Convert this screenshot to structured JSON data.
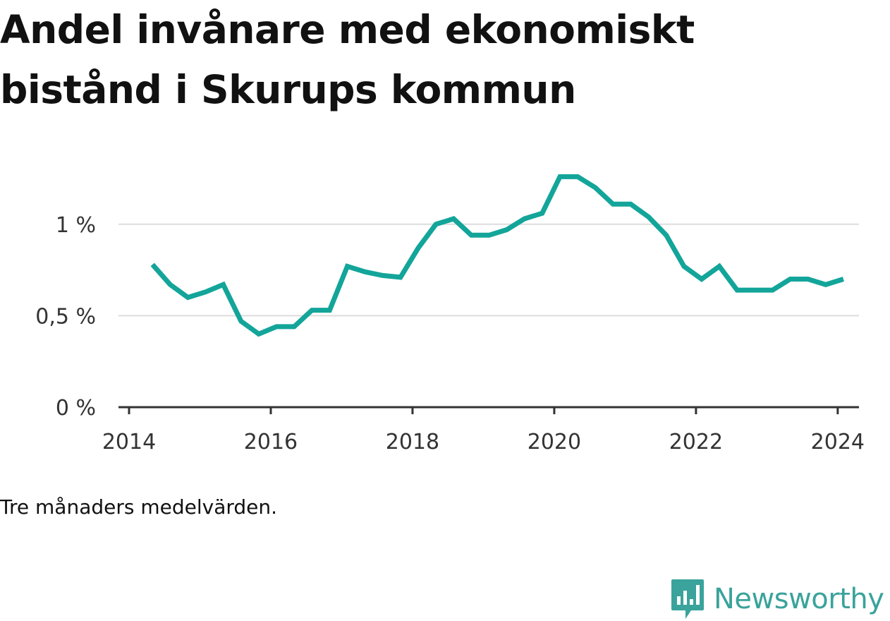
{
  "title": "Andel invånare med ekonomiskt bistånd i Skurups kommun",
  "caption": "Tre månaders medelvärden.",
  "brand": {
    "name": "Newsworthy",
    "color": "#3aa39b"
  },
  "chart_data": {
    "type": "line",
    "title": "Andel invånare med ekonomiskt bistånd i Skurups kommun",
    "xlabel": "",
    "ylabel": "",
    "xlim": [
      2013.99,
      2024.3
    ],
    "ylim": [
      0,
      1.3
    ],
    "x_ticks": [
      2014,
      2016,
      2018,
      2020,
      2022,
      2024
    ],
    "x_tick_labels": [
      "2014",
      "2016",
      "2018",
      "2020",
      "2022",
      "2024"
    ],
    "y_ticks": [
      0,
      0.5,
      1
    ],
    "y_tick_labels": [
      "0 %",
      "0,5 %",
      "1 %"
    ],
    "grid": true,
    "line_color": "#13a59a",
    "series": [
      {
        "x": [
          2014.33,
          2014.58,
          2014.83,
          2015.08,
          2015.33,
          2015.58,
          2015.83,
          2016.08,
          2016.33,
          2016.58,
          2016.83,
          2017.08,
          2017.33,
          2017.58,
          2017.83,
          2018.08,
          2018.33,
          2018.58,
          2018.83,
          2019.08,
          2019.33,
          2019.58,
          2019.83,
          2020.08,
          2020.33,
          2020.58,
          2020.83,
          2021.08,
          2021.33,
          2021.58,
          2021.83,
          2022.08,
          2022.33,
          2022.58,
          2022.83,
          2023.08,
          2023.33,
          2023.58,
          2023.83,
          2024.08
        ],
        "values": [
          0.78,
          0.67,
          0.6,
          0.63,
          0.67,
          0.47,
          0.4,
          0.44,
          0.44,
          0.53,
          0.53,
          0.77,
          0.74,
          0.72,
          0.71,
          0.87,
          1.0,
          1.03,
          0.94,
          0.94,
          0.97,
          1.03,
          1.06,
          1.26,
          1.26,
          1.2,
          1.11,
          1.11,
          1.04,
          0.94,
          0.77,
          0.7,
          0.77,
          0.64,
          0.64,
          0.64,
          0.7,
          0.7,
          0.67,
          0.7
        ]
      }
    ]
  }
}
